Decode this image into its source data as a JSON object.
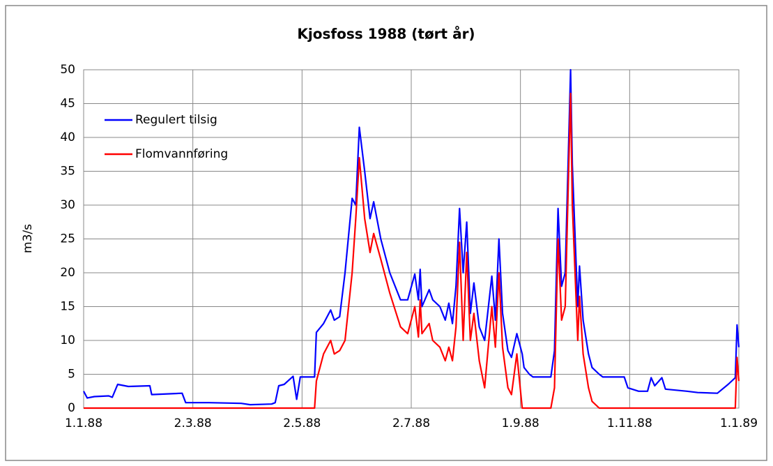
{
  "chart_data": {
    "type": "line",
    "title": "Kjosfoss 1988 (tørt år)",
    "ylabel": "m3/s",
    "x": [
      "1.1.88",
      "3.1.88",
      "7.1.88",
      "15.1.88",
      "17.1.88",
      "20.1.88",
      "26.1.88",
      "7.2.88",
      "8.2.88",
      "25.2.88",
      "27.2.88",
      "11.3.88",
      "29.3.88",
      "3.4.88",
      "15.4.88",
      "17.4.88",
      "19.4.88",
      "22.4.88",
      "27.4.88",
      "29.4.88",
      "1.5.88",
      "7.5.88",
      "9.5.88",
      "10.5.88",
      "14.5.88",
      "18.5.88",
      "20.5.88",
      "23.5.88",
      "26.5.88",
      "30.5.88",
      "1.6.88",
      "3.6.88",
      "6.6.88",
      "9.6.88",
      "11.6.88",
      "15.6.88",
      "20.6.88",
      "26.6.88",
      "30.6.88",
      "4.7.88",
      "6.7.88",
      "7.7.88",
      "8.7.88",
      "12.7.88",
      "14.7.88",
      "18.7.88",
      "21.7.88",
      "23.7.88",
      "25.7.88",
      "27.7.88",
      "29.7.88",
      "31.7.88",
      "2.8.88",
      "4.8.88",
      "6.8.88",
      "9.8.88",
      "12.8.88",
      "16.8.88",
      "18.8.88",
      "20.8.88",
      "22.8.88",
      "25.8.88",
      "27.8.88",
      "30.8.88",
      "2.9.88",
      "3.9.88",
      "6.9.88",
      "8.9.88",
      "18.9.88",
      "20.9.88",
      "22.9.88",
      "24.9.88",
      "26.9.88",
      "29.9.88",
      "30.9.88",
      "3.10.88",
      "4.10.88",
      "6.10.88",
      "9.10.88",
      "11.10.88",
      "15.10.88",
      "17.10.88",
      "29.10.88",
      "31.10.88",
      "6.11.88",
      "11.11.88",
      "13.11.88",
      "15.11.88",
      "19.11.88",
      "21.11.88",
      "3.12.88",
      "9.12.88",
      "20.12.88",
      "26.12.88",
      "30.12.88",
      "31.12.88",
      "1.1.89"
    ],
    "series": [
      {
        "name": "Regulert tilsig",
        "color": "#0000ff",
        "values": [
          2.5,
          1.5,
          1.7,
          1.8,
          1.6,
          3.5,
          3.2,
          3.3,
          2.0,
          2.2,
          0.8,
          0.8,
          0.7,
          0.5,
          0.6,
          0.8,
          3.3,
          3.5,
          4.7,
          1.3,
          4.6,
          4.6,
          4.6,
          11.2,
          12.5,
          14.5,
          13,
          13.5,
          20,
          31,
          30,
          41.5,
          35,
          28,
          30.5,
          25,
          20,
          16,
          16,
          19.8,
          16,
          20.5,
          15,
          17.5,
          16,
          15,
          13,
          15.5,
          12.5,
          18,
          29.5,
          20,
          27.5,
          14,
          18.5,
          12,
          10,
          19.5,
          13,
          25,
          14,
          8.5,
          7.5,
          11,
          8,
          6,
          5,
          4.6,
          4.6,
          8.5,
          29.5,
          18,
          20,
          50,
          36,
          15,
          21,
          13,
          8,
          6,
          5,
          4.6,
          4.6,
          3,
          2.5,
          2.5,
          4.5,
          3.3,
          4.5,
          2.8,
          2.5,
          2.3,
          2.2,
          3.5,
          4.5,
          12.3,
          9
        ]
      },
      {
        "name": "Flomvannføring",
        "color": "#ff0000",
        "values": [
          0,
          0,
          0,
          0,
          0,
          0,
          0,
          0,
          0,
          0,
          0,
          0,
          0,
          0,
          0,
          0,
          0,
          0,
          0,
          0,
          0,
          0,
          0,
          4,
          8,
          10,
          8,
          8.5,
          10,
          20,
          28,
          37,
          28,
          23,
          25.8,
          22,
          17,
          12,
          11,
          15,
          10.5,
          16,
          11,
          12.5,
          10,
          9,
          7,
          9,
          7,
          12,
          24.5,
          10,
          23,
          10,
          14,
          7,
          3,
          15,
          9,
          20,
          9,
          3,
          2,
          8,
          0,
          0,
          0,
          0,
          0,
          3,
          25,
          13,
          15,
          46.5,
          30,
          10,
          16.5,
          8,
          3,
          1,
          0,
          0,
          0,
          0,
          0,
          0,
          0,
          0,
          0,
          0,
          0,
          0,
          0,
          0,
          0,
          7.5,
          4
        ]
      }
    ],
    "xlim": [
      "1.1.88",
      "1.1.89"
    ],
    "xticks": [
      "1.1.88",
      "2.3.88",
      "2.5.88",
      "2.7.88",
      "1.9.88",
      "1.11.88",
      "1.1.89"
    ],
    "ylim": [
      0,
      50
    ],
    "yticks": [
      0,
      5,
      10,
      15,
      20,
      25,
      30,
      35,
      40,
      45,
      50
    ],
    "grid": true,
    "legend": "upper left"
  }
}
